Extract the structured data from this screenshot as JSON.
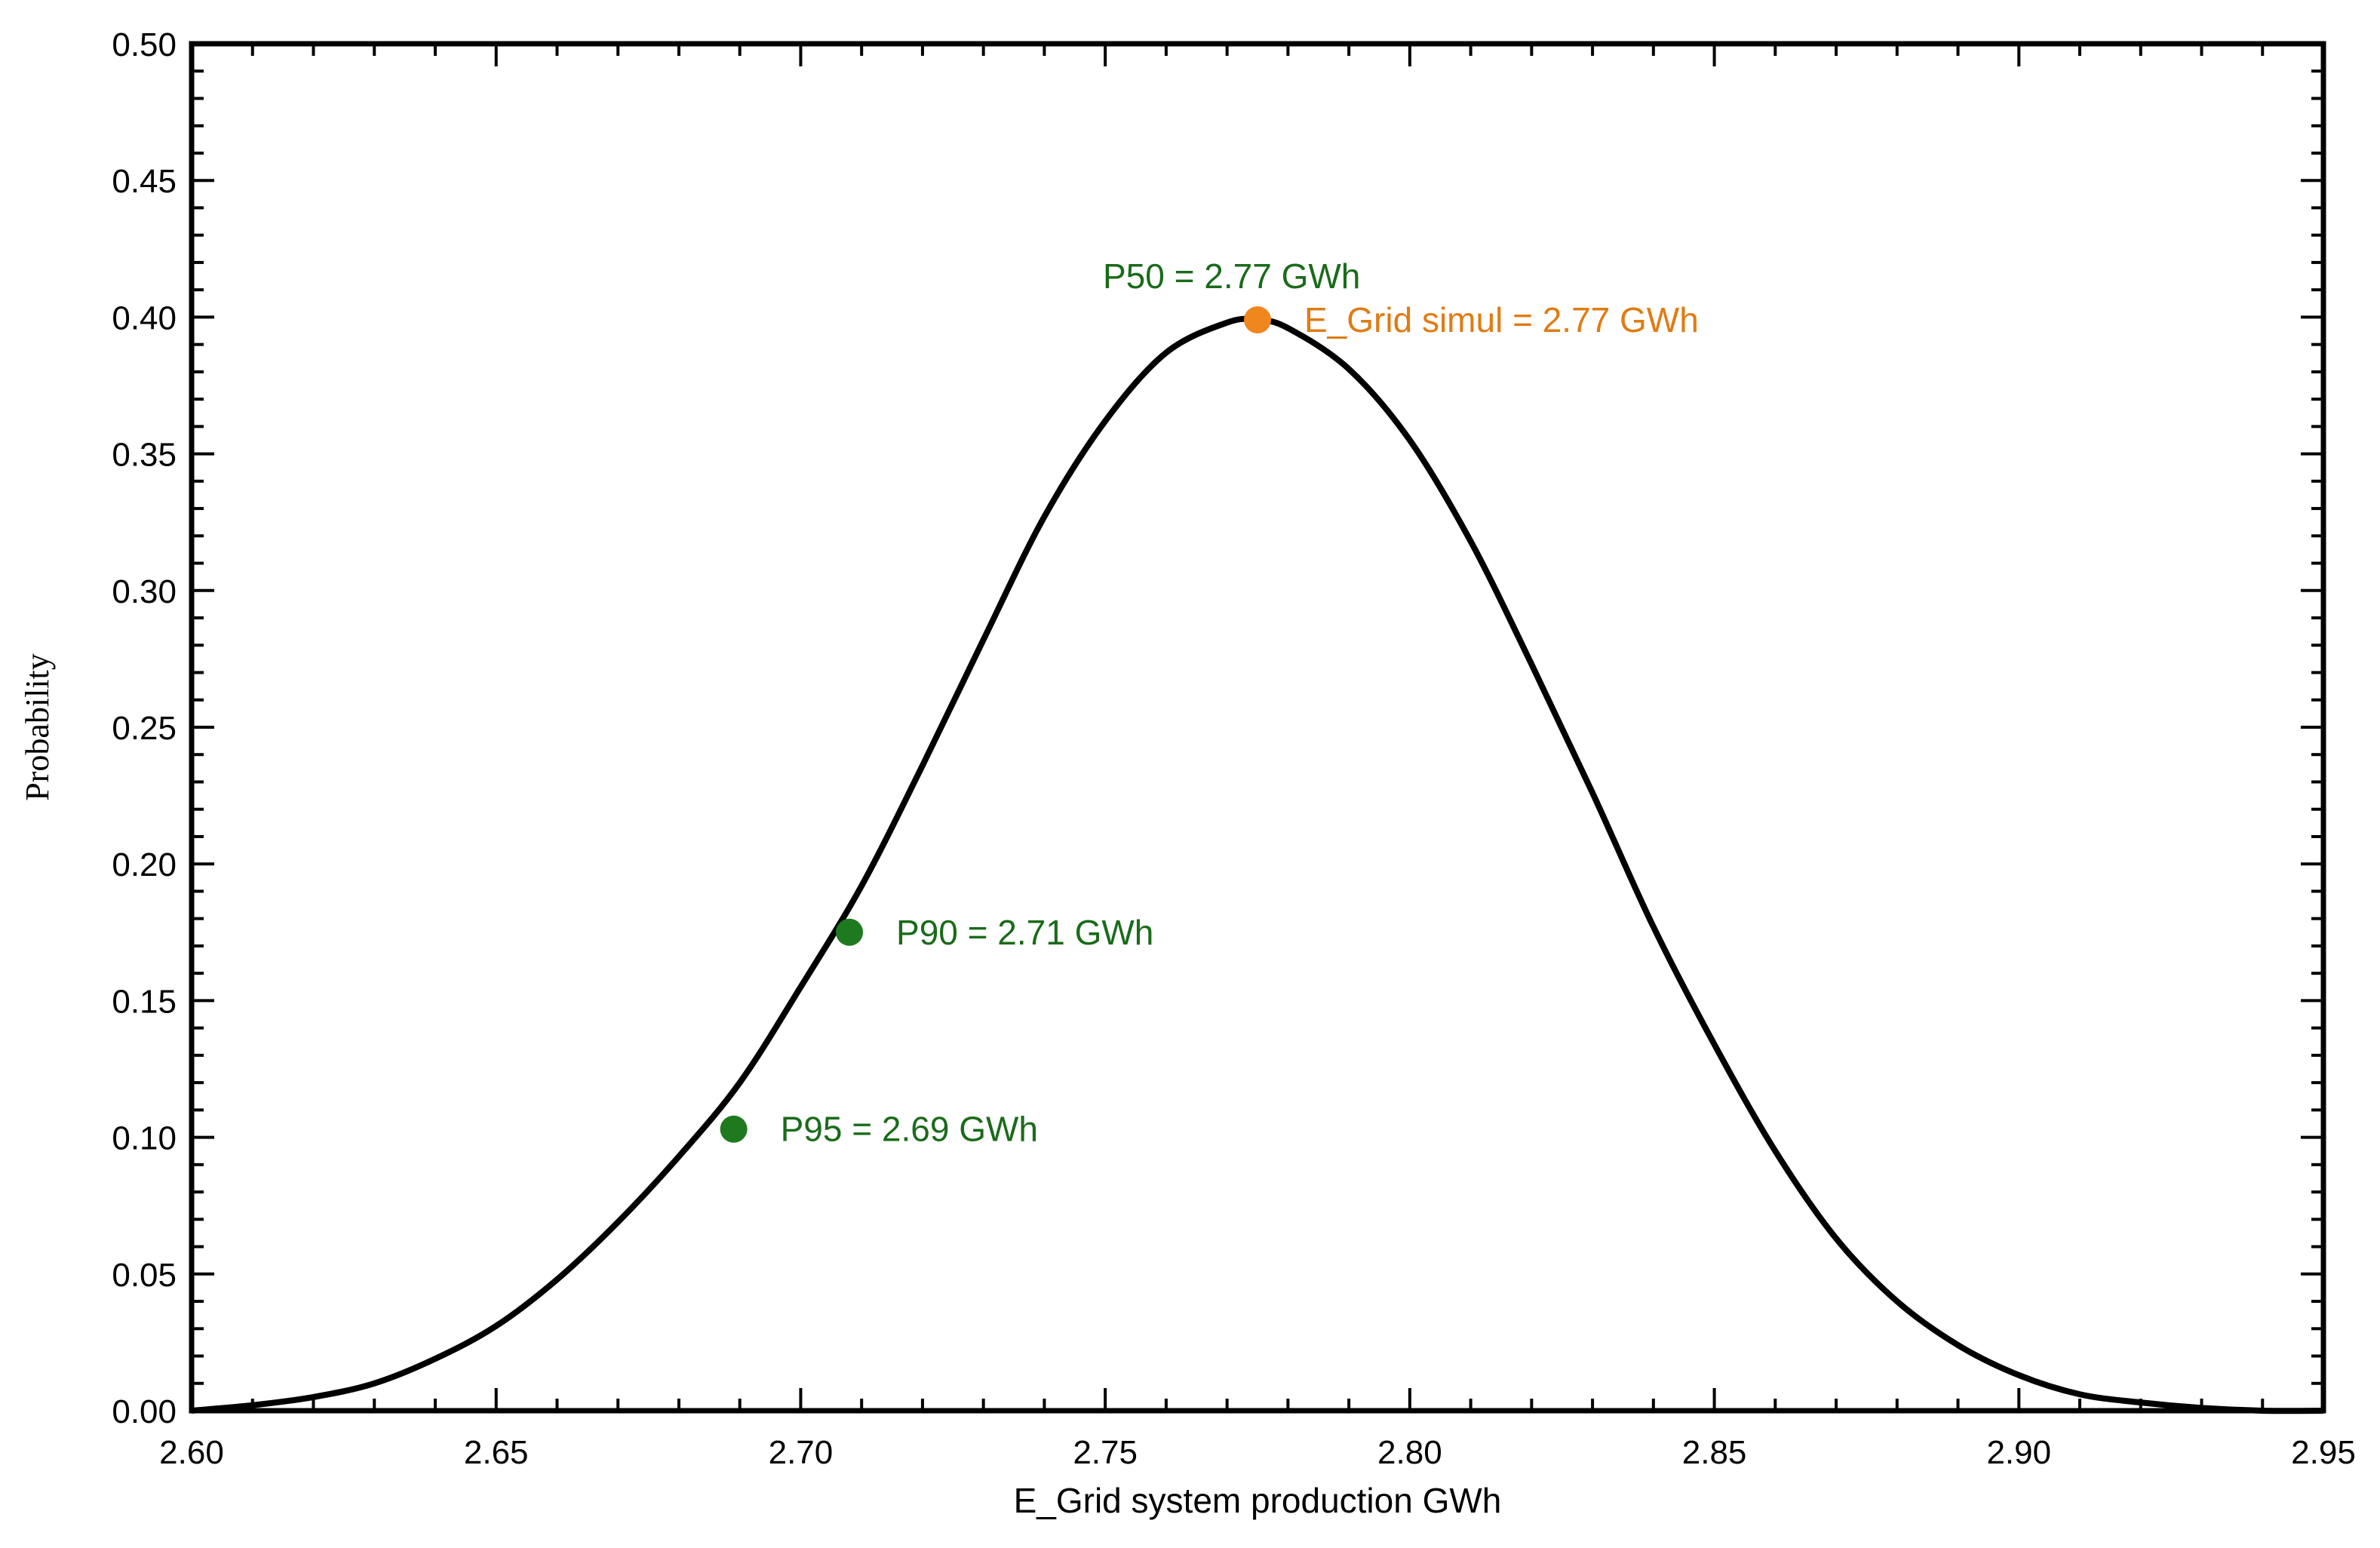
{
  "chart_data": {
    "type": "line",
    "title": "",
    "xlabel": "E_Grid system production GWh",
    "ylabel": "Probability",
    "xlim": [
      2.6,
      2.95
    ],
    "ylim": [
      0.0,
      0.5
    ],
    "x_ticks": [
      "2.60",
      "2.65",
      "2.70",
      "2.75",
      "2.80",
      "2.85",
      "2.90",
      "2.95"
    ],
    "y_ticks": [
      "0.00",
      "0.05",
      "0.10",
      "0.15",
      "0.20",
      "0.25",
      "0.30",
      "0.35",
      "0.40",
      "0.45",
      "0.50"
    ],
    "grid": false,
    "legend": "none",
    "series": [
      {
        "x": [
          2.6,
          2.61,
          2.62,
          2.63,
          2.64,
          2.65,
          2.66,
          2.67,
          2.68,
          2.69,
          2.7,
          2.71,
          2.72,
          2.73,
          2.74,
          2.75,
          2.76,
          2.77,
          2.775,
          2.78,
          2.79,
          2.8,
          2.81,
          2.82,
          2.83,
          2.84,
          2.85,
          2.86,
          2.87,
          2.88,
          2.89,
          2.9,
          2.91,
          2.92,
          2.93,
          2.94,
          2.95
        ],
        "y": [
          0.0,
          0.002,
          0.005,
          0.01,
          0.019,
          0.031,
          0.048,
          0.069,
          0.093,
          0.12,
          0.155,
          0.192,
          0.236,
          0.282,
          0.327,
          0.362,
          0.387,
          0.398,
          0.399,
          0.396,
          0.381,
          0.355,
          0.318,
          0.273,
          0.226,
          0.177,
          0.134,
          0.095,
          0.063,
          0.04,
          0.024,
          0.013,
          0.006,
          0.003,
          0.001,
          0.0,
          0.0
        ],
        "color": "#000000"
      }
    ],
    "annotations": [
      {
        "label": "P50 = 2.77 GWh",
        "color": "#1a6b1a"
      },
      {
        "label": "E_Grid simul = 2.77 GWh",
        "x": 2.775,
        "y": 0.399,
        "color": "#e07b14",
        "marker_color": "#f0871e"
      },
      {
        "label": "P90 = 2.71 GWh",
        "x": 2.708,
        "y": 0.175,
        "color": "#1a6b1a",
        "marker_color": "#1f7a1f"
      },
      {
        "label": "P95 = 2.69 GWh",
        "x": 2.689,
        "y": 0.103,
        "color": "#1a6b1a",
        "marker_color": "#1f7a1f"
      }
    ]
  }
}
